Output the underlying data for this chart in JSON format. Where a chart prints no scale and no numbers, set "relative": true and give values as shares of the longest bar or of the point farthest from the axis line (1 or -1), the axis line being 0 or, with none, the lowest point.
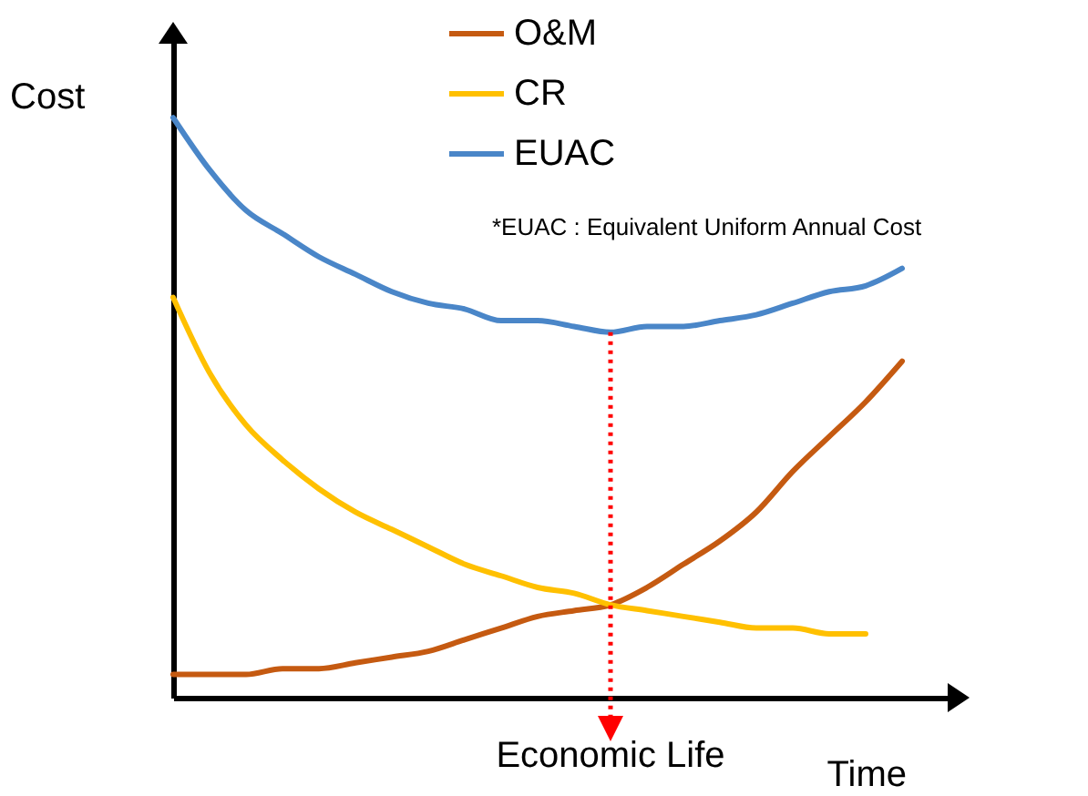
{
  "chart_data": {
    "type": "line",
    "relative": true,
    "xlabel": "Time",
    "ylabel": "Cost",
    "legend": "top",
    "line_style": "solid",
    "categories": [
      null,
      null,
      null,
      null,
      null,
      null,
      null,
      null,
      null,
      null,
      null,
      null,
      null,
      null,
      null,
      null,
      null,
      null,
      null,
      null,
      null
    ],
    "series": [
      {
        "name": "O&M",
        "color": "#c55a11",
        "values": [
          0.04,
          0.04,
          0.04,
          0.05,
          0.05,
          0.06,
          0.07,
          0.08,
          0.1,
          0.12,
          0.14,
          0.15,
          0.16,
          0.19,
          0.23,
          0.27,
          0.32,
          0.39,
          0.45,
          0.51,
          0.58
        ]
      },
      {
        "name": "CR",
        "color": "#ffc000",
        "values": [
          0.69,
          0.56,
          0.47,
          0.41,
          0.36,
          0.32,
          0.29,
          0.26,
          0.23,
          0.21,
          0.19,
          0.18,
          0.16,
          0.15,
          0.14,
          0.13,
          0.12,
          0.12,
          0.11,
          0.11,
          null
        ]
      },
      {
        "name": "EUAC",
        "color": "#4a86c8",
        "values": [
          1.0,
          0.91,
          0.84,
          0.8,
          0.76,
          0.73,
          0.7,
          0.68,
          0.67,
          0.65,
          0.65,
          0.64,
          0.63,
          0.64,
          0.64,
          0.65,
          0.66,
          0.68,
          0.7,
          0.71,
          0.74
        ]
      }
    ],
    "annotations": [
      "Economic Life",
      "*EUAC : Equivalent Uniform Annual Cost"
    ]
  }
}
